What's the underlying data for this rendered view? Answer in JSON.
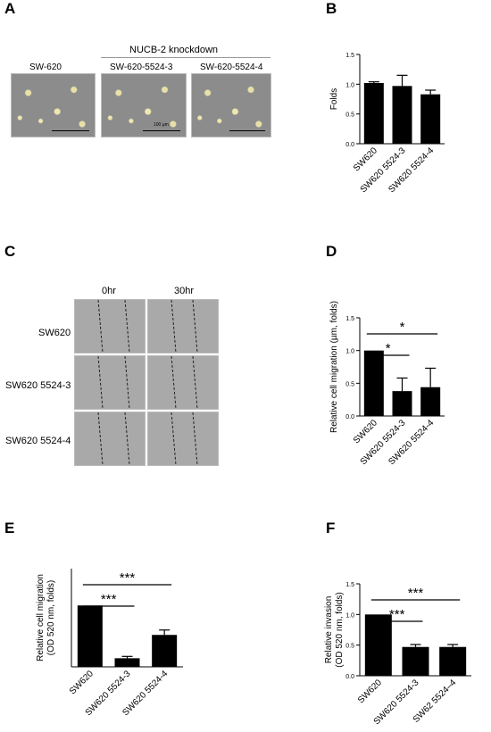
{
  "figure": {
    "panel_letters": [
      "A",
      "B",
      "C",
      "D",
      "E",
      "F"
    ],
    "panel_a": {
      "group_header": "NUCB-2 knockdown",
      "image_labels": [
        "SW-620",
        "SW-620-5524-3",
        "SW-620-5524-4"
      ],
      "scale_text": "100 µm"
    },
    "panel_c": {
      "col_headers": [
        "0hr",
        "30hr"
      ],
      "row_labels": [
        "SW620",
        "SW620 5524-3",
        "SW620 5524-4"
      ]
    }
  },
  "chart_data": [
    {
      "panel": "B",
      "type": "bar",
      "ylabel": "Folds",
      "categories": [
        "SW620",
        "SW620 5524-3",
        "SW620 5524-4"
      ],
      "values": [
        1.02,
        0.97,
        0.83
      ],
      "errors": [
        0.02,
        0.18,
        0.07
      ],
      "ylim": [
        0,
        1.5
      ],
      "yticks": [
        "0.0",
        "0.5",
        "1.0",
        "1.5"
      ],
      "significance": []
    },
    {
      "panel": "D",
      "type": "bar",
      "ylabel": "Relative cell migration (µm, folds)",
      "categories": [
        "SW620",
        "SW620 5524-3",
        "SW620 5524-4"
      ],
      "values": [
        1.0,
        0.38,
        0.44
      ],
      "errors": [
        0.0,
        0.2,
        0.29
      ],
      "ylim": [
        0,
        1.5
      ],
      "yticks": [
        "0.0",
        "0.5",
        "1.0",
        "1.5"
      ],
      "significance": [
        {
          "from": 0,
          "to": 1,
          "label": "*"
        },
        {
          "from": 0,
          "to": 2,
          "label": "*"
        }
      ]
    },
    {
      "panel": "E",
      "type": "bar",
      "ylabel": "Relative cell migration",
      "ylabel2": "(OD 520 nm, folds)",
      "categories": [
        "SW620",
        "SW620 5524-3",
        "SW620 5524-4"
      ],
      "values": [
        1.0,
        0.14,
        0.52
      ],
      "errors": [
        0.0,
        0.03,
        0.08
      ],
      "ylim": [
        0,
        1.6
      ],
      "yticks": [],
      "significance": [
        {
          "from": 0,
          "to": 1,
          "label": "***"
        },
        {
          "from": 0,
          "to": 2,
          "label": "***"
        }
      ]
    },
    {
      "panel": "F",
      "type": "bar",
      "ylabel": "Relative invasion",
      "ylabel2": "(OD 520 nm, folds)",
      "categories": [
        "SW620",
        "SW620 5524-3",
        "SW62 5524–4"
      ],
      "values": [
        1.0,
        0.47,
        0.47
      ],
      "errors": [
        0.0,
        0.04,
        0.04
      ],
      "ylim": [
        0,
        1.5
      ],
      "yticks": [
        "0.0",
        "0.5",
        "1.0",
        "1.5"
      ],
      "significance": [
        {
          "from": 0,
          "to": 1,
          "label": "***"
        },
        {
          "from": 0,
          "to": 2,
          "label": "***"
        }
      ]
    }
  ]
}
